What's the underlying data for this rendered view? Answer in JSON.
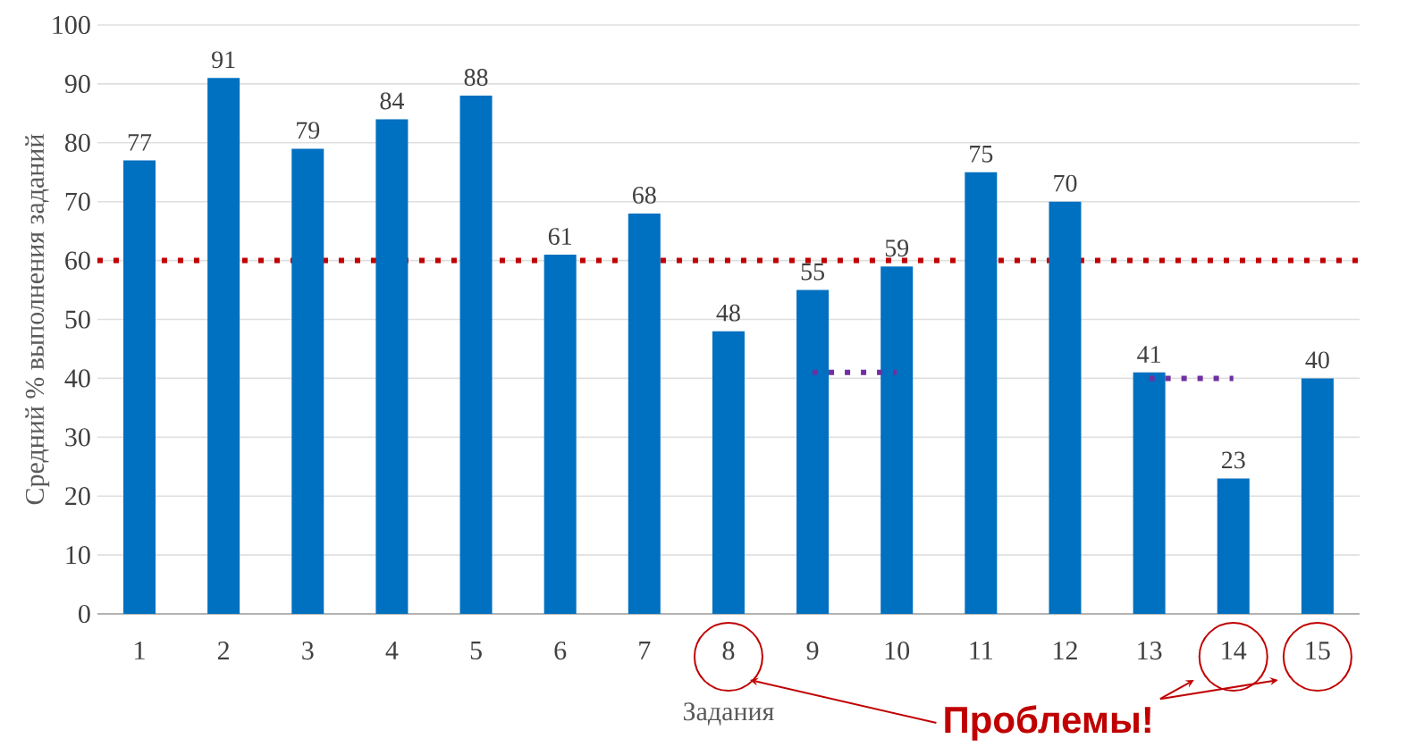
{
  "chart_data": {
    "type": "bar",
    "xlabel": "Задания",
    "ylabel": "Средний % выполнения заданий",
    "categories": [
      "1",
      "2",
      "3",
      "4",
      "5",
      "6",
      "7",
      "8",
      "9",
      "10",
      "11",
      "12",
      "13",
      "14",
      "15"
    ],
    "series": [
      {
        "color": "#0070c0",
        "values": [
          77,
          91,
          79,
          84,
          88,
          61,
          68,
          48,
          55,
          59,
          75,
          70,
          41,
          23,
          40
        ],
        "value_labels": [
          "77",
          "91",
          "79",
          "84",
          "88",
          "61",
          "68",
          "48",
          "55",
          "59",
          "75",
          "70",
          "41",
          "23",
          "40"
        ]
      },
      {
        "type": "line",
        "color": "#7030a0",
        "line_style": "dotted",
        "x": [
          "9",
          "10"
        ],
        "values": [
          41,
          41
        ]
      },
      {
        "type": "line",
        "color": "#7030a0",
        "line_style": "dotted",
        "x": [
          "13",
          "14"
        ],
        "values": [
          40,
          40
        ]
      }
    ],
    "ref_lines": [
      {
        "axis": "y",
        "value": 60,
        "color": "#c00000",
        "line_style": "dotted"
      }
    ],
    "ylim": [
      0,
      100
    ],
    "yticks": [
      0,
      10,
      20,
      30,
      40,
      50,
      60,
      70,
      80,
      90,
      100
    ],
    "grid": "y",
    "annotations": [
      "Проблемы!"
    ]
  }
}
